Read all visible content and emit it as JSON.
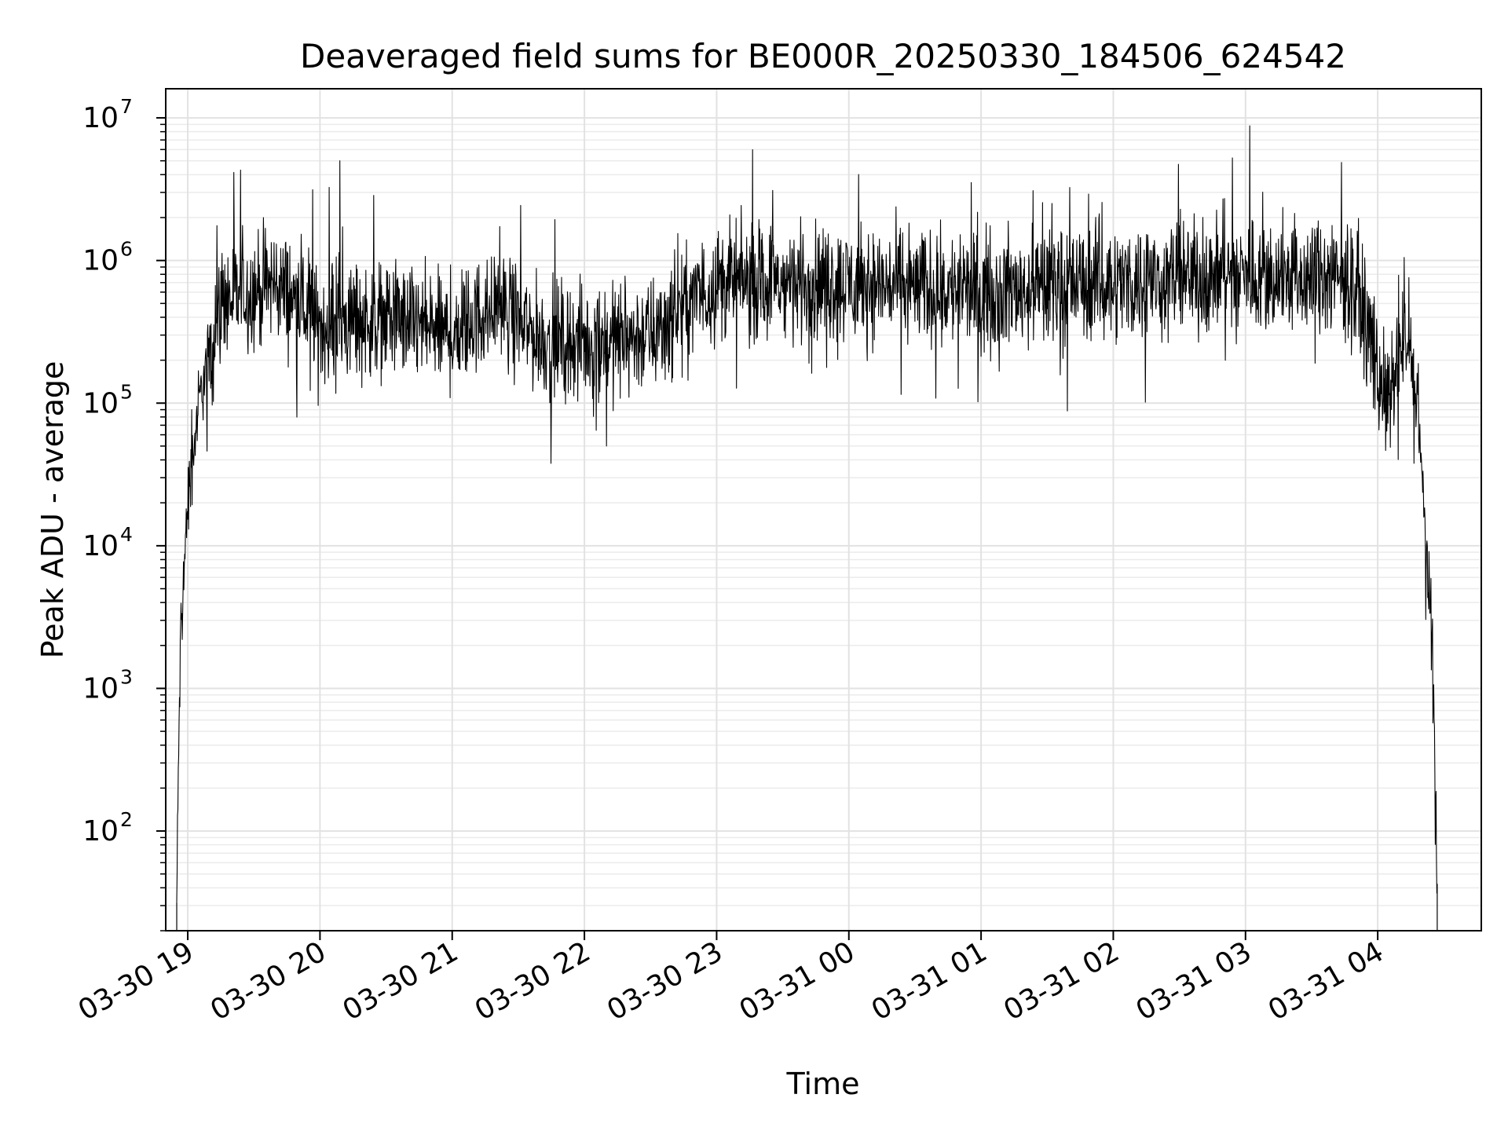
{
  "chart_data": {
    "type": "line",
    "title": "Deaveraged field sums for BE000R_20250330_184506_624542",
    "xlabel": "Time",
    "ylabel": "Peak ADU - average",
    "yscale": "log",
    "ylim": [
      20,
      16000000
    ],
    "xlim": [
      "2025-03-30 18:50",
      "2025-03-31 04:47"
    ],
    "grid": true,
    "line_color": "#000000",
    "x_ticks": [
      {
        "label": "03-30 19",
        "time": "2025-03-30 19:00"
      },
      {
        "label": "03-30 20",
        "time": "2025-03-30 20:00"
      },
      {
        "label": "03-30 21",
        "time": "2025-03-30 21:00"
      },
      {
        "label": "03-30 22",
        "time": "2025-03-30 22:00"
      },
      {
        "label": "03-30 23",
        "time": "2025-03-30 23:00"
      },
      {
        "label": "03-31 00",
        "time": "2025-03-31 00:00"
      },
      {
        "label": "03-31 01",
        "time": "2025-03-31 01:00"
      },
      {
        "label": "03-31 02",
        "time": "2025-03-31 02:00"
      },
      {
        "label": "03-31 03",
        "time": "2025-03-31 03:00"
      },
      {
        "label": "03-31 04",
        "time": "2025-03-31 04:00"
      }
    ],
    "y_ticks": [
      {
        "base": "10",
        "exp": "2",
        "value": 100
      },
      {
        "base": "10",
        "exp": "3",
        "value": 1000
      },
      {
        "base": "10",
        "exp": "4",
        "value": 10000
      },
      {
        "base": "10",
        "exp": "5",
        "value": 100000
      },
      {
        "base": "10",
        "exp": "6",
        "value": 1000000
      },
      {
        "base": "10",
        "exp": "7",
        "value": 10000000
      }
    ],
    "series_envelope": [
      {
        "time": "2025-03-30 18:55",
        "median": 30
      },
      {
        "time": "2025-03-30 18:56",
        "median": 500
      },
      {
        "time": "2025-03-30 18:57",
        "median": 3000
      },
      {
        "time": "2025-03-30 19:00",
        "median": 20000
      },
      {
        "time": "2025-03-30 19:05",
        "median": 100000
      },
      {
        "time": "2025-03-30 19:15",
        "median": 500000
      },
      {
        "time": "2025-03-30 19:40",
        "median": 700000
      },
      {
        "time": "2025-03-30 20:00",
        "median": 350000
      },
      {
        "time": "2025-03-30 20:30",
        "median": 400000
      },
      {
        "time": "2025-03-30 21:00",
        "median": 300000
      },
      {
        "time": "2025-03-30 21:20",
        "median": 500000
      },
      {
        "time": "2025-03-30 21:40",
        "median": 280000
      },
      {
        "time": "2025-03-30 22:00",
        "median": 260000
      },
      {
        "time": "2025-03-30 22:30",
        "median": 300000
      },
      {
        "time": "2025-03-30 23:00",
        "median": 700000
      },
      {
        "time": "2025-03-31 00:00",
        "median": 700000
      },
      {
        "time": "2025-03-31 01:00",
        "median": 600000
      },
      {
        "time": "2025-03-31 02:00",
        "median": 700000
      },
      {
        "time": "2025-03-31 03:00",
        "median": 800000
      },
      {
        "time": "2025-03-31 03:50",
        "median": 700000
      },
      {
        "time": "2025-03-31 04:05",
        "median": 90000
      },
      {
        "time": "2025-03-31 04:12",
        "median": 300000
      },
      {
        "time": "2025-03-31 04:18",
        "median": 100000
      },
      {
        "time": "2025-03-31 04:22",
        "median": 10000
      },
      {
        "time": "2025-03-31 04:25",
        "median": 2000
      },
      {
        "time": "2025-03-31 04:27",
        "median": 40
      }
    ],
    "notable_points": [
      {
        "time": "2025-03-30 19:24",
        "value": 4300000
      },
      {
        "time": "2025-03-30 20:09",
        "value": 5000000
      },
      {
        "time": "2025-03-31 03:02",
        "value": 8800000
      },
      {
        "time": "2025-03-30 22:10",
        "value": 50000
      },
      {
        "time": "2025-03-31 04:12",
        "value": 1050000
      }
    ]
  }
}
